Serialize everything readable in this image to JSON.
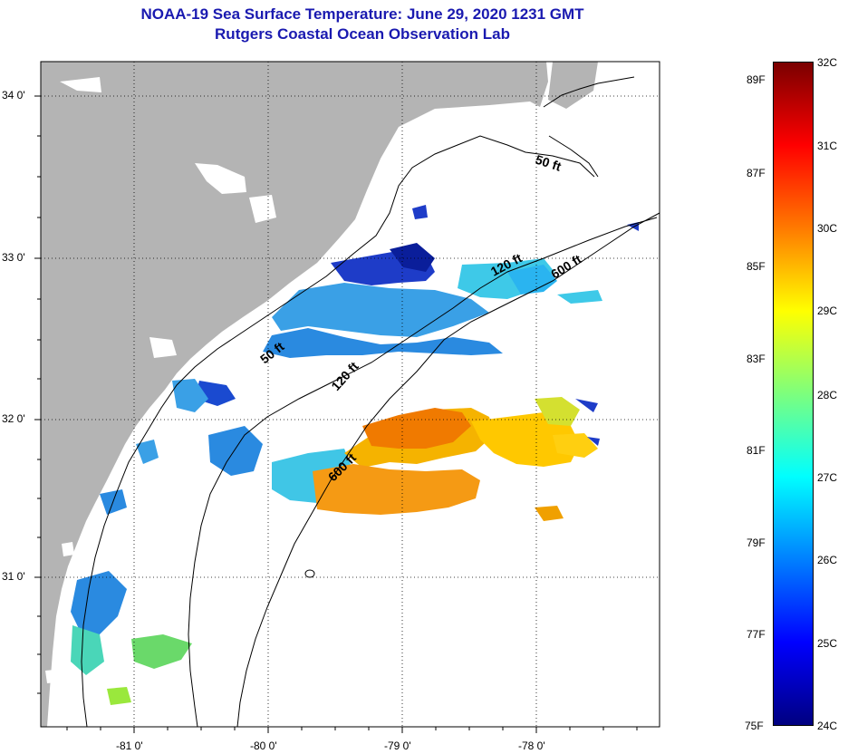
{
  "title_line1": "NOAA-19 Sea Surface Temperature:  June 29, 2020 1231 GMT",
  "title_line2": "Rutgers Coastal Ocean Observation Lab",
  "lat_labels": [
    "34 0'",
    "33 0'",
    "32 0'",
    "31 0'"
  ],
  "lon_labels": [
    "-81 0'",
    "-80 0'",
    "-79 0'",
    "-78 0'"
  ],
  "contour_labels": [
    "50 ft",
    "120 ft",
    "600 ft",
    "50 ft",
    "120 ft",
    "600 ft"
  ],
  "colorbar": {
    "fahrenheit": [
      "89F",
      "87F",
      "85F",
      "83F",
      "81F",
      "79F",
      "77F",
      "75F"
    ],
    "celsius": [
      "32C",
      "31C",
      "30C",
      "29C",
      "28C",
      "27C",
      "26C",
      "25C",
      "24C"
    ],
    "colors": [
      "#7a0000",
      "#ff0000",
      "#ff7a00",
      "#ffff00",
      "#7dff7d",
      "#00ffff",
      "#0080ff",
      "#0000ff",
      "#000080"
    ]
  },
  "colors": {
    "land": "#b4b4b4",
    "ocean": "#ffffff",
    "title": "#1a1ab0"
  }
}
